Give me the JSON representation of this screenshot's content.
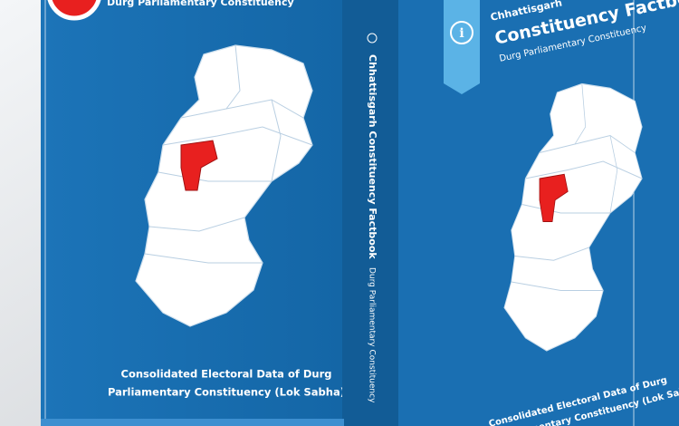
{
  "front_cover": {
    "subtitle": "Durg Parliamentary Constituency",
    "description": [
      "Consolidated Electoral Data of Durg",
      "Parliamentary Constituency (Lok Sabha)"
    ]
  },
  "spine": {
    "title": "Chhattisgarh Constituency Factbook",
    "subtitle": "Durg Parliamentary Constituency"
  },
  "back_cover": {
    "series": "Chhattisgarh",
    "title": "Constituency Factbook",
    "subtitle": "Durg Parliamentary Constituency",
    "description": [
      "Consolidated Electoral Data of Durg",
      "Parliamentary Constituency (Lok Sabha)"
    ]
  }
}
